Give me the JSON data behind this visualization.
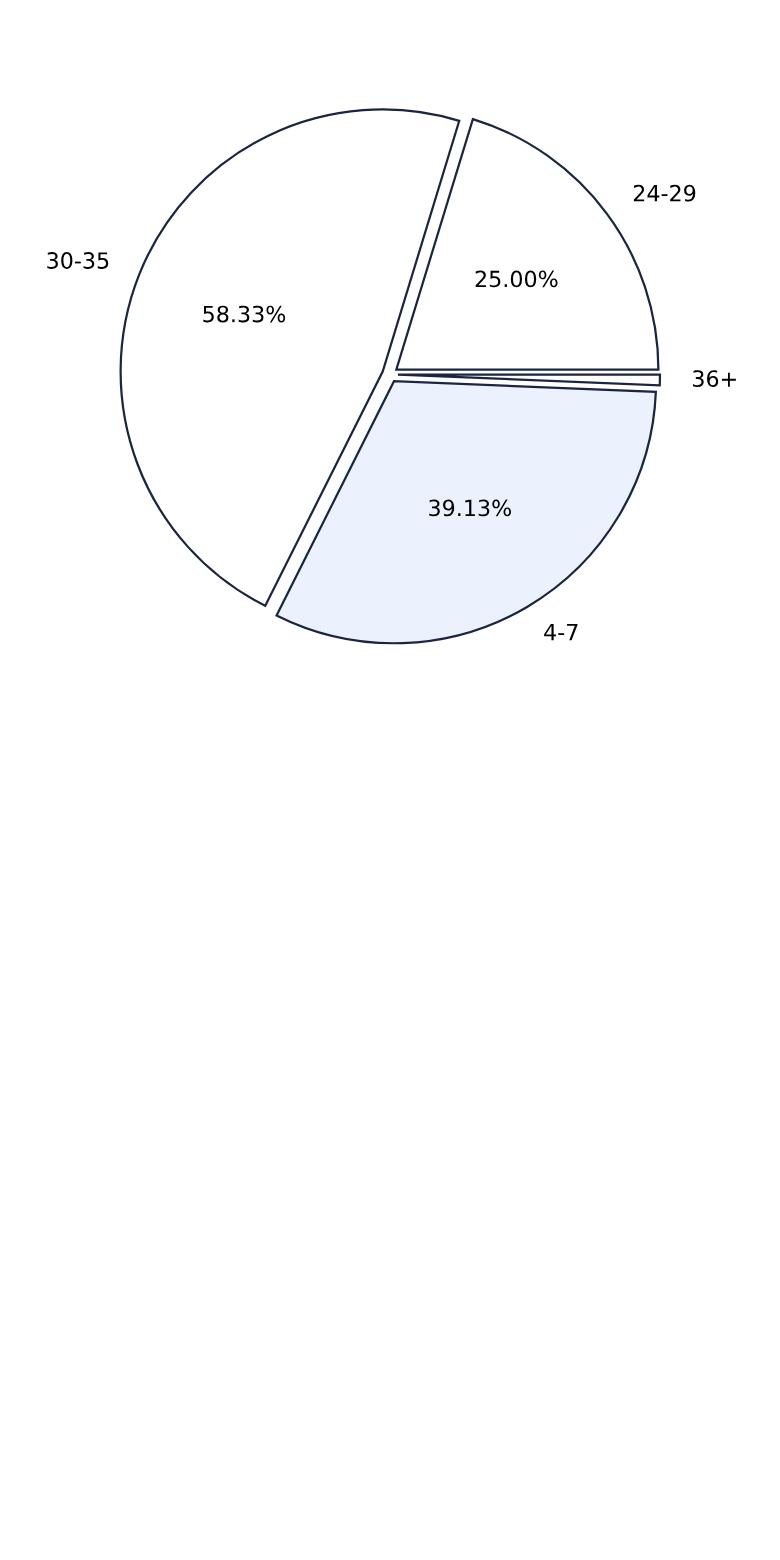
{
  "chart_data": {
    "type": "pie",
    "categories": [
      "24-29",
      "30-35",
      "4-7",
      "36+"
    ],
    "values": [
      25.0,
      58.33,
      39.13,
      0.8
    ],
    "value_labels": [
      "25.00%",
      "58.33%",
      "39.13%",
      null
    ],
    "colors": [
      "#ffffff",
      "#ffffff",
      "#ebf1fd",
      "#ffffff"
    ],
    "legend": false
  }
}
